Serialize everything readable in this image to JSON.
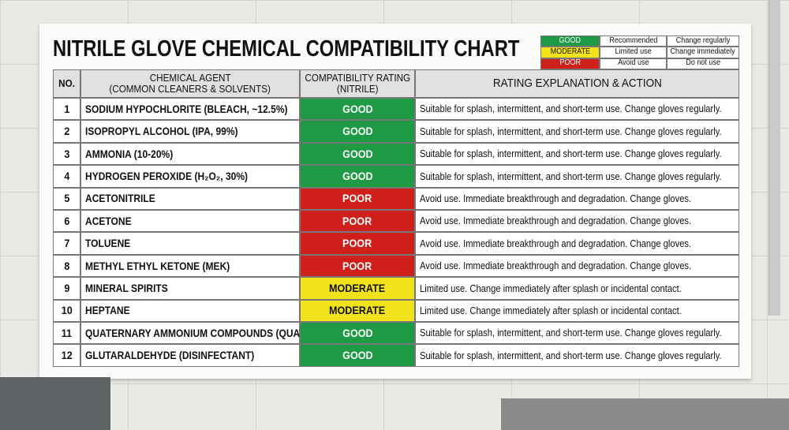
{
  "title": "NITRILE GLOVE CHEMICAL COMPATIBILITY CHART",
  "legend": [
    {
      "rating": "GOOD",
      "meaning": "Recommended",
      "action": "Change regularly",
      "color": "#1e9a45"
    },
    {
      "rating": "MODERATE",
      "meaning": "Limited use",
      "action": "Change immediately",
      "color": "#f2e21a"
    },
    {
      "rating": "POOR",
      "meaning": "Avoid use",
      "action": "Do not use",
      "color": "#d0201c"
    }
  ],
  "table": {
    "headers": {
      "no": "NO.",
      "agent": [
        "CHEMICAL AGENT",
        "(COMMON CLEANERS & SOLVENTS)"
      ],
      "rating": [
        "COMPATIBILITY RATING",
        "(NITRILE)"
      ],
      "explanation": "RATING EXPLANATION & ACTION"
    },
    "rows": [
      [
        "1",
        "SODIUM HYPOCHLORITE (BLEACH, ~12.5%)",
        "GOOD",
        "Suitable for splash, intermittent, and short-term use. Change gloves regularly."
      ],
      [
        "2",
        "ISOPROPYL ALCOHOL (IPA, 99%)",
        "GOOD",
        "Suitable for splash, intermittent, and short-term use. Change gloves regularly."
      ],
      [
        "3",
        "AMMONIA (10-20%)",
        "GOOD",
        "Suitable for splash, intermittent, and short-term use. Change gloves regularly."
      ],
      [
        "4",
        "HYDROGEN PEROXIDE (H₂O₂, 30%)",
        "GOOD",
        "Suitable for splash, intermittent, and short-term use. Change gloves regularly."
      ],
      [
        "5",
        "ACETONITRILE",
        "POOR",
        "Avoid use. Immediate breakthrough and degradation. Change gloves."
      ],
      [
        "6",
        "ACETONE",
        "POOR",
        "Avoid use. Immediate breakthrough and degradation. Change gloves."
      ],
      [
        "7",
        "TOLUENE",
        "POOR",
        "Avoid use. Immediate breakthrough and degradation. Change gloves."
      ],
      [
        "8",
        "METHYL ETHYL KETONE (MEK)",
        "POOR",
        "Avoid use. Immediate breakthrough and degradation. Change gloves."
      ],
      [
        "9",
        "MINERAL SPIRITS",
        "MODERATE",
        "Limited use. Change immediately after splash or incidental contact."
      ],
      [
        "10",
        "HEPTANE",
        "MODERATE",
        "Limited use. Change immediately after splash or incidental contact."
      ],
      [
        "11",
        "QUATERNARY AMMONIUM COMPOUNDS (QUATS)",
        "GOOD",
        "Suitable for splash, intermittent, and short-term use. Change gloves regularly."
      ],
      [
        "12",
        "GLUTARALDEHYDE (DISINFECTANT)",
        "GOOD",
        "Suitable for splash, intermittent, and short-term use. Change gloves regularly."
      ]
    ]
  }
}
